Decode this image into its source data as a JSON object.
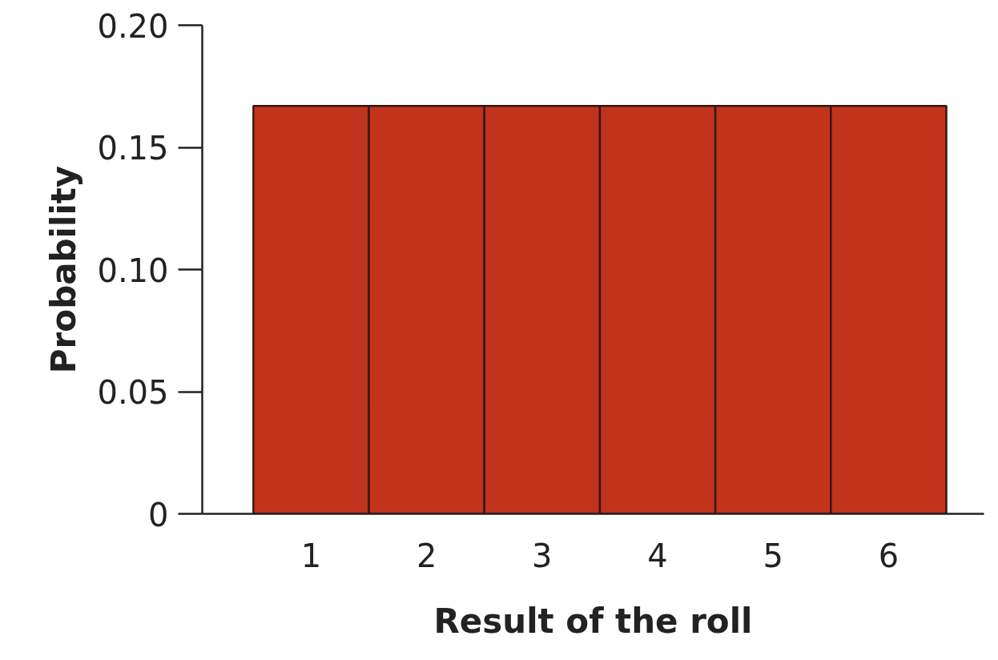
{
  "chart_data": {
    "type": "bar",
    "xlabel": "Result of the roll",
    "ylabel": "Probability",
    "categories": [
      "1",
      "2",
      "3",
      "4",
      "5",
      "6"
    ],
    "values": [
      0.167,
      0.167,
      0.167,
      0.167,
      0.167,
      0.167
    ],
    "color": "#c1331c",
    "ylim": [
      0,
      0.2
    ],
    "yticks": [
      0,
      0.05,
      {
        "value": 0.1,
        "label": "0.10"
      },
      0.15,
      {
        "value": 0.2,
        "label": "0.20"
      }
    ],
    "grid": false
  }
}
